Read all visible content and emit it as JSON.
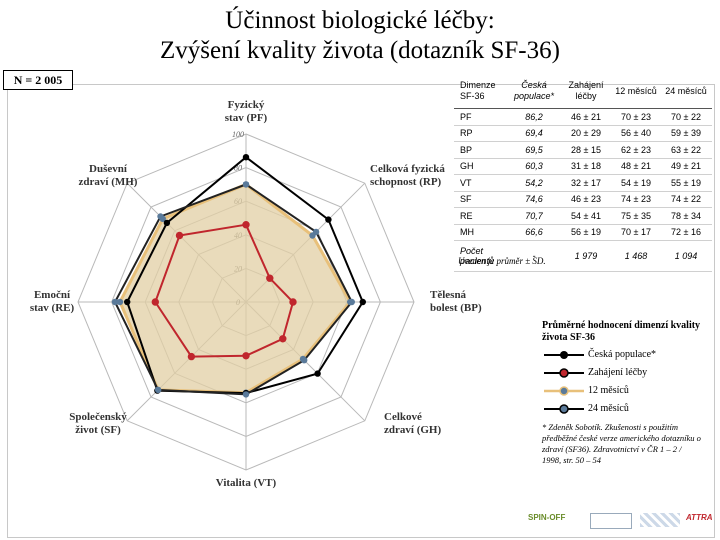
{
  "title_line1": "Účinnost biologické léčby:",
  "title_line2": "Zvýšení kvality života (dotazník SF-36)",
  "n_label": "N = 2 005",
  "chart_data": {
    "type": "radar",
    "axes": [
      {
        "name": "PF",
        "label_lines": [
          "Fyzický",
          "stav (PF)"
        ]
      },
      {
        "name": "RP",
        "label_lines": [
          "Celková fyzická",
          "schopnost (RP)"
        ]
      },
      {
        "name": "BP",
        "label_lines": [
          "Tělesná",
          "bolest (BP)"
        ]
      },
      {
        "name": "GH",
        "label_lines": [
          "Celkové",
          "zdraví (GH)"
        ]
      },
      {
        "name": "VT",
        "label_lines": [
          "Vitalita (VT)"
        ]
      },
      {
        "name": "SF",
        "label_lines": [
          "Společenský",
          "život (SF)"
        ]
      },
      {
        "name": "RE",
        "label_lines": [
          "Emoční",
          "stav (RE)"
        ]
      },
      {
        "name": "MH",
        "label_lines": [
          "Duševní",
          "zdraví (MH)"
        ]
      }
    ],
    "rlim": [
      0,
      100
    ],
    "ticks": [
      "0",
      "20",
      "40",
      "60",
      "80",
      "100"
    ],
    "series": [
      {
        "name": "Česká populace*",
        "values": [
          86.2,
          69.4,
          69.5,
          60.3,
          54.2,
          74.6,
          70.7,
          66.6
        ],
        "color": "#000000",
        "marker": "#000000",
        "fill": "none"
      },
      {
        "name": "Zahájení léčby",
        "values": [
          46,
          20,
          28,
          31,
          32,
          46,
          54,
          56
        ],
        "color": "#c0262d",
        "marker": "#c0262d",
        "fill": "none"
      },
      {
        "name": "12 měsíců",
        "values": [
          70,
          56,
          62,
          48,
          54,
          74,
          75,
          70
        ],
        "color": "#e8c07a",
        "marker": "#5a7a9a",
        "fill": "#e2cfa4"
      },
      {
        "name": "24 měsíců",
        "values": [
          70,
          59,
          63,
          49,
          55,
          74,
          78,
          72
        ],
        "color": "#222222",
        "marker": "#5a7a9a",
        "fill": "none"
      }
    ]
  },
  "table": {
    "headers": [
      "Dimenze SF-36",
      "Česká populace*",
      "Zahájení léčby",
      "12 měsíců",
      "24 měsíců"
    ],
    "rows": [
      [
        "PF",
        "86,2",
        "46 ± 21",
        "70 ± 23",
        "70 ± 22"
      ],
      [
        "RP",
        "69,4",
        "20 ± 29",
        "56 ± 40",
        "59 ± 39"
      ],
      [
        "BP",
        "69,5",
        "28 ± 15",
        "62 ± 23",
        "63 ± 22"
      ],
      [
        "GH",
        "60,3",
        "31 ± 18",
        "48 ± 21",
        "49 ± 21"
      ],
      [
        "VT",
        "54,2",
        "32 ± 17",
        "54 ± 19",
        "55 ± 19"
      ],
      [
        "SF",
        "74,6",
        "46 ± 23",
        "74 ± 23",
        "74 ± 22"
      ],
      [
        "RE",
        "70,7",
        "54 ± 41",
        "75 ± 35",
        "78 ± 34"
      ],
      [
        "MH",
        "66,6",
        "56 ± 19",
        "70 ± 17",
        "72 ± 16"
      ]
    ],
    "last_row": [
      "Počet pacientů",
      "-",
      "1 979",
      "1 468",
      "1 094"
    ]
  },
  "note": "Uveden je průměr ± SD.",
  "legend": {
    "title": "Průměrné hodnocení dimenzí kvality života SF-36",
    "items": [
      "Česká populace*",
      "Zahájení léčby",
      "12 měsíců",
      "24 měsíců"
    ],
    "reference": "* Zdeněk Sobotík. Zkušenosti s použitím předběžné české verze amerického dotazníku o zdraví (SF36). Zdravotnictví v ČR 1 – 2 / 1998, str. 50 – 54"
  },
  "logos": [
    "SPIN-OFF",
    "ATTRA"
  ]
}
